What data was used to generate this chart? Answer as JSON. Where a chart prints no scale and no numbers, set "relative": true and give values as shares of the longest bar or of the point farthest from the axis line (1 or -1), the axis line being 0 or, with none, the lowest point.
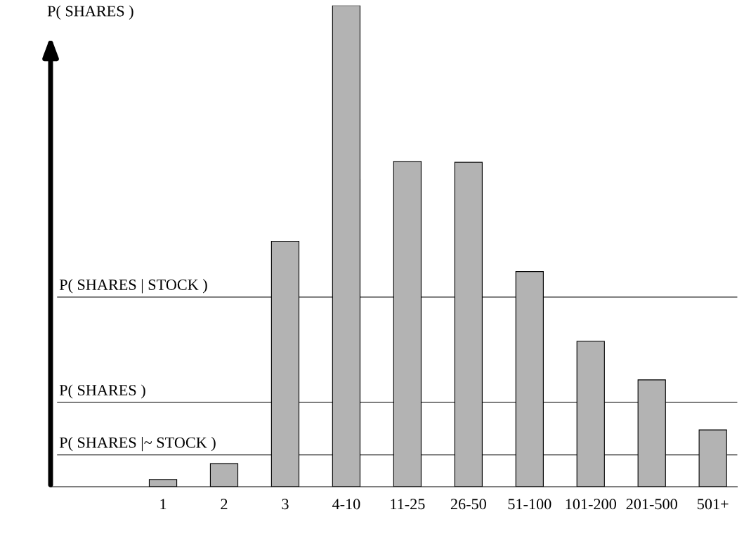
{
  "chart_data": {
    "type": "bar",
    "relative": true,
    "ylabel": "P( SHARES )",
    "categories": [
      "1",
      "2",
      "3",
      "4-10",
      "11-25",
      "26-50",
      "51-100",
      "101-200",
      "201-500",
      "501+"
    ],
    "values": [
      0.015,
      0.048,
      0.51,
      1,
      0.676,
      0.674,
      0.447,
      0.302,
      0.222,
      0.118
    ],
    "color": "#b3b3b3",
    "ref_lines": [
      {
        "axis": "y",
        "value": 0.394,
        "label": "P( SHARES | STOCK )",
        "color": "#000000"
      },
      {
        "axis": "y",
        "value": 0.175,
        "label": "P( SHARES )",
        "color": "#000000"
      },
      {
        "axis": "y",
        "value": 0.066,
        "label": "P( SHARES |~ STOCK )",
        "color": "#000000"
      }
    ],
    "grid": false,
    "legend": false
  }
}
